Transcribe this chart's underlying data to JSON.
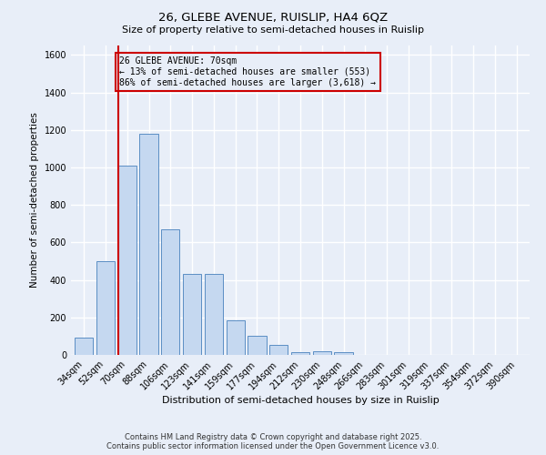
{
  "title": "26, GLEBE AVENUE, RUISLIP, HA4 6QZ",
  "subtitle": "Size of property relative to semi-detached houses in Ruislip",
  "xlabel": "Distribution of semi-detached houses by size in Ruislip",
  "ylabel": "Number of semi-detached properties",
  "categories": [
    "34sqm",
    "52sqm",
    "70sqm",
    "88sqm",
    "106sqm",
    "123sqm",
    "141sqm",
    "159sqm",
    "177sqm",
    "194sqm",
    "212sqm",
    "230sqm",
    "248sqm",
    "266sqm",
    "283sqm",
    "301sqm",
    "319sqm",
    "337sqm",
    "354sqm",
    "372sqm",
    "390sqm"
  ],
  "values": [
    90,
    500,
    1010,
    1180,
    670,
    430,
    430,
    185,
    100,
    55,
    15,
    20,
    15,
    0,
    0,
    0,
    0,
    0,
    0,
    0,
    0
  ],
  "bar_color": "#c5d8f0",
  "bar_edge_color": "#5b8ec4",
  "vline_x_index": 2,
  "vline_color": "#cc0000",
  "annotation_title": "26 GLEBE AVENUE: 70sqm",
  "annotation_line1": "← 13% of semi-detached houses are smaller (553)",
  "annotation_line2": "86% of semi-detached houses are larger (3,618) →",
  "annotation_box_color": "#cc0000",
  "ylim": [
    0,
    1650
  ],
  "yticks": [
    0,
    200,
    400,
    600,
    800,
    1000,
    1200,
    1400,
    1600
  ],
  "footer_line1": "Contains HM Land Registry data © Crown copyright and database right 2025.",
  "footer_line2": "Contains public sector information licensed under the Open Government Licence v3.0.",
  "background_color": "#e8eef8",
  "grid_color": "#ffffff"
}
